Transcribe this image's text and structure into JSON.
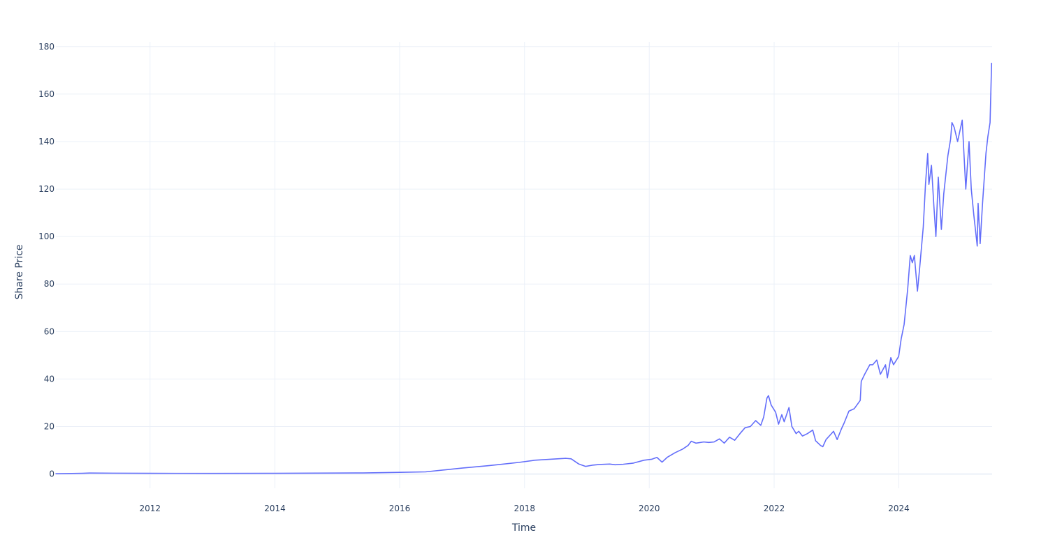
{
  "chart_data": {
    "type": "line",
    "title": "",
    "xlabel": "Time",
    "ylabel": "Share Price",
    "xlim": [
      "2010-06-29",
      "2025-06-30"
    ],
    "ylim": [
      -6,
      182
    ],
    "grid": true,
    "legend": "none",
    "x_ticks": [
      {
        "label": "2012",
        "value": "2012-01-01"
      },
      {
        "label": "2014",
        "value": "2014-01-01"
      },
      {
        "label": "2016",
        "value": "2016-01-01"
      },
      {
        "label": "2018",
        "value": "2018-01-01"
      },
      {
        "label": "2020",
        "value": "2020-01-01"
      },
      {
        "label": "2022",
        "value": "2022-01-01"
      },
      {
        "label": "2024",
        "value": "2024-01-01"
      }
    ],
    "y_ticks": [
      {
        "label": "0",
        "value": 0
      },
      {
        "label": "20",
        "value": 20
      },
      {
        "label": "40",
        "value": 40
      },
      {
        "label": "60",
        "value": 60
      },
      {
        "label": "80",
        "value": 80
      },
      {
        "label": "100",
        "value": 100
      },
      {
        "label": "120",
        "value": 120
      },
      {
        "label": "140",
        "value": 140
      },
      {
        "label": "160",
        "value": 160
      },
      {
        "label": "180",
        "value": 180
      }
    ],
    "series": [
      {
        "color": "#636efa",
        "x": [
          "2010-06-29",
          "2010-12-01",
          "2011-01-15",
          "2011-06-01",
          "2012-01-01",
          "2012-06-01",
          "2013-01-01",
          "2014-01-01",
          "2015-01-01",
          "2015-06-01",
          "2016-01-01",
          "2016-06-01",
          "2017-01-01",
          "2017-06-01",
          "2017-09-01",
          "2017-12-01",
          "2018-03-01",
          "2018-06-01",
          "2018-09-01",
          "2018-10-01",
          "2018-11-15",
          "2018-12-24",
          "2019-02-01",
          "2019-03-15",
          "2019-05-15",
          "2019-06-15",
          "2019-08-01",
          "2019-10-01",
          "2019-12-01",
          "2020-01-15",
          "2020-02-15",
          "2020-03-16",
          "2020-04-15",
          "2020-06-01",
          "2020-07-15",
          "2020-08-15",
          "2020-09-03",
          "2020-10-01",
          "2020-11-15",
          "2020-12-15",
          "2021-01-15",
          "2021-02-15",
          "2021-03-15",
          "2021-04-15",
          "2021-05-15",
          "2021-06-15",
          "2021-07-15",
          "2021-08-15",
          "2021-09-15",
          "2021-10-15",
          "2021-11-01",
          "2021-11-20",
          "2021-11-29",
          "2021-12-15",
          "2022-01-10",
          "2022-01-27",
          "2022-02-15",
          "2022-03-01",
          "2022-03-29",
          "2022-04-15",
          "2022-05-10",
          "2022-05-25",
          "2022-06-16",
          "2022-07-15",
          "2022-08-15",
          "2022-09-01",
          "2022-09-30",
          "2022-10-13",
          "2022-11-01",
          "2022-11-30",
          "2022-12-15",
          "2023-01-05",
          "2023-01-30",
          "2023-02-15",
          "2023-03-15",
          "2023-04-15",
          "2023-05-20",
          "2023-05-26",
          "2023-06-15",
          "2023-07-15",
          "2023-08-01",
          "2023-08-25",
          "2023-09-15",
          "2023-10-15",
          "2023-10-26",
          "2023-11-15",
          "2023-12-01",
          "2023-12-31",
          "2024-01-15",
          "2024-02-01",
          "2024-02-22",
          "2024-03-08",
          "2024-03-20",
          "2024-04-01",
          "2024-04-19",
          "2024-05-01",
          "2024-05-23",
          "2024-06-05",
          "2024-06-18",
          "2024-06-25",
          "2024-07-10",
          "2024-07-24",
          "2024-08-05",
          "2024-08-19",
          "2024-09-06",
          "2024-09-20",
          "2024-10-14",
          "2024-10-30",
          "2024-11-07",
          "2024-11-20",
          "2024-12-10",
          "2025-01-06",
          "2025-01-27",
          "2025-02-15",
          "2025-02-28",
          "2025-03-15",
          "2025-04-04",
          "2025-04-09",
          "2025-04-21",
          "2025-05-05",
          "2025-05-25",
          "2025-06-05",
          "2025-06-18",
          "2025-06-27"
        ],
        "values": [
          0.1,
          0.3,
          0.42,
          0.35,
          0.3,
          0.28,
          0.25,
          0.3,
          0.4,
          0.45,
          0.7,
          0.9,
          2.5,
          3.5,
          4.2,
          4.9,
          5.8,
          6.2,
          6.6,
          6.4,
          4.2,
          3.2,
          3.7,
          4.0,
          4.2,
          3.9,
          4.1,
          4.6,
          5.8,
          6.2,
          7.0,
          5.0,
          7.0,
          9.0,
          10.5,
          12.0,
          13.8,
          13.0,
          13.5,
          13.3,
          13.5,
          14.8,
          13.0,
          15.5,
          14.2,
          17.0,
          19.5,
          20.0,
          22.5,
          20.5,
          24.0,
          32.0,
          33.0,
          29.0,
          26.0,
          21.0,
          25.0,
          22.0,
          28.0,
          20.0,
          17.0,
          18.0,
          16.0,
          17.0,
          18.5,
          14.0,
          12.0,
          11.5,
          14.5,
          16.8,
          18.0,
          14.5,
          19.0,
          21.5,
          26.5,
          27.5,
          31.0,
          39.0,
          42.0,
          46.0,
          46.0,
          48.0,
          42.0,
          46.0,
          40.5,
          49.0,
          46.0,
          49.5,
          57.0,
          63.0,
          78.0,
          92.0,
          89.0,
          92.0,
          77.0,
          86.0,
          104.0,
          122.0,
          135.0,
          122.0,
          130.0,
          113.0,
          100.0,
          125.0,
          103.0,
          118.0,
          134.0,
          141.0,
          148.0,
          146.0,
          140.0,
          149.0,
          120.0,
          140.0,
          120.0,
          109.0,
          96.0,
          114.0,
          97.0,
          114.0,
          135.0,
          142.0,
          148.0,
          173.0
        ]
      }
    ]
  }
}
